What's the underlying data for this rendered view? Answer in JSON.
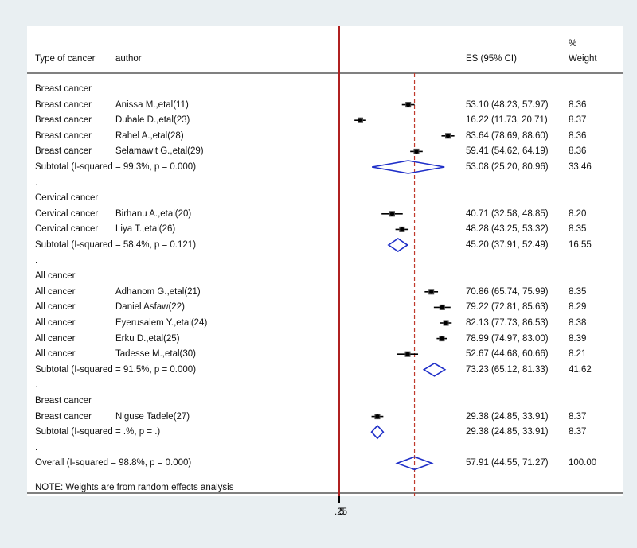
{
  "header": {
    "type_col": "Type of cancer",
    "author_col": "author",
    "es_col": "ES (95% CI)",
    "weight_pct": "%",
    "weight_col": "Weight"
  },
  "note": "NOTE: Weights are from random effects analysis",
  "axis_tick_label": ".25",
  "axis_tick_overlap_glyph": "5",
  "chart_data": {
    "type": "forest",
    "null_line": 0,
    "overall_effect_line": 57.91,
    "rows": [
      {
        "kind": "group",
        "label": "Breast cancer"
      },
      {
        "kind": "study",
        "type": "Breast cancer",
        "author": "Anissa M.,etal(11)",
        "es": 53.1,
        "lo": 48.23,
        "hi": 57.97,
        "es_text": "53.10 (48.23, 57.97)",
        "weight": "8.36"
      },
      {
        "kind": "study",
        "type": "Breast cancer",
        "author": "Dubale D.,etal(23)",
        "es": 16.22,
        "lo": 11.73,
        "hi": 20.71,
        "es_text": "16.22 (11.73, 20.71)",
        "weight": "8.37"
      },
      {
        "kind": "study",
        "type": "Breast cancer",
        "author": "Rahel A.,etal(28)",
        "es": 83.64,
        "lo": 78.69,
        "hi": 88.6,
        "es_text": "83.64 (78.69, 88.60)",
        "weight": "8.36"
      },
      {
        "kind": "study",
        "type": "Breast cancer",
        "author": "Selamawit G.,etal(29)",
        "es": 59.41,
        "lo": 54.62,
        "hi": 64.19,
        "es_text": "59.41 (54.62, 64.19)",
        "weight": "8.36"
      },
      {
        "kind": "subtotal",
        "label": "Subtotal  (I-squared = 99.3%, p = 0.000)",
        "es": 53.08,
        "lo": 25.2,
        "hi": 80.96,
        "es_text": "53.08 (25.20, 80.96)",
        "weight": "33.46"
      },
      {
        "kind": "dot",
        "label": "."
      },
      {
        "kind": "group",
        "label": "Cervical cancer"
      },
      {
        "kind": "study",
        "type": "Cervical cancer",
        "author": "Birhanu A.,etal(20)",
        "es": 40.71,
        "lo": 32.58,
        "hi": 48.85,
        "es_text": "40.71 (32.58, 48.85)",
        "weight": "8.20"
      },
      {
        "kind": "study",
        "type": "Cervical cancer",
        "author": "Liya T.,etal(26)",
        "es": 48.28,
        "lo": 43.25,
        "hi": 53.32,
        "es_text": "48.28 (43.25, 53.32)",
        "weight": "8.35"
      },
      {
        "kind": "subtotal",
        "label": "Subtotal  (I-squared = 58.4%, p = 0.121)",
        "es": 45.2,
        "lo": 37.91,
        "hi": 52.49,
        "es_text": "45.20 (37.91, 52.49)",
        "weight": "16.55"
      },
      {
        "kind": "dot",
        "label": "."
      },
      {
        "kind": "group",
        "label": "All cancer"
      },
      {
        "kind": "study",
        "type": "All cancer",
        "author": "Adhanom G.,etal(21)",
        "es": 70.86,
        "lo": 65.74,
        "hi": 75.99,
        "es_text": "70.86 (65.74, 75.99)",
        "weight": "8.35"
      },
      {
        "kind": "study",
        "type": "All cancer",
        "author": "Daniel Asfaw(22)",
        "es": 79.22,
        "lo": 72.81,
        "hi": 85.63,
        "es_text": "79.22 (72.81, 85.63)",
        "weight": "8.29"
      },
      {
        "kind": "study",
        "type": "All cancer",
        "author": "Eyerusalem Y.,etal(24)",
        "es": 82.13,
        "lo": 77.73,
        "hi": 86.53,
        "es_text": "82.13 (77.73, 86.53)",
        "weight": "8.38"
      },
      {
        "kind": "study",
        "type": "All cancer",
        "author": "Erku D.,etal(25)",
        "es": 78.99,
        "lo": 74.97,
        "hi": 83.0,
        "es_text": "78.99 (74.97, 83.00)",
        "weight": "8.39"
      },
      {
        "kind": "study",
        "type": "All cancer",
        "author": "Tadesse M.,etal(30)",
        "es": 52.67,
        "lo": 44.68,
        "hi": 60.66,
        "es_text": "52.67 (44.68, 60.66)",
        "weight": "8.21"
      },
      {
        "kind": "subtotal",
        "label": "Subtotal  (I-squared = 91.5%, p = 0.000)",
        "es": 73.23,
        "lo": 65.12,
        "hi": 81.33,
        "es_text": "73.23 (65.12, 81.33)",
        "weight": "41.62"
      },
      {
        "kind": "dot",
        "label": "."
      },
      {
        "kind": "group",
        "label": "Breast cancer"
      },
      {
        "kind": "study",
        "type": "Breast cancer",
        "author": "Niguse Tadele(27)",
        "es": 29.38,
        "lo": 24.85,
        "hi": 33.91,
        "es_text": "29.38 (24.85, 33.91)",
        "weight": "8.37"
      },
      {
        "kind": "subtotal",
        "label": "Subtotal  (I-squared = .%, p = .)",
        "es": 29.38,
        "lo": 24.85,
        "hi": 33.91,
        "es_text": "29.38 (24.85, 33.91)",
        "weight": "8.37"
      },
      {
        "kind": "dot",
        "label": "."
      },
      {
        "kind": "overall",
        "label": "Overall  (I-squared = 98.8%, p = 0.000)",
        "es": 57.91,
        "lo": 44.55,
        "hi": 71.27,
        "es_text": "57.91 (44.55, 71.27)",
        "weight": "100.00"
      }
    ]
  },
  "colors": {
    "background": "#e9eff2",
    "panel": "#ffffff",
    "null_line": "#d62728",
    "effect_line": "#c0392b",
    "diamond": "#1f2fc8",
    "marker": "#000000"
  }
}
